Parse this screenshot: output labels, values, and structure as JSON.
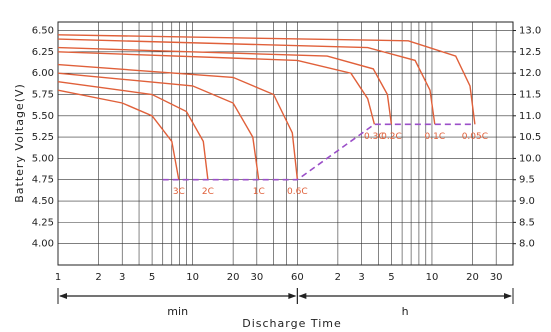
{
  "chart_data": {
    "type": "line",
    "y_label": "Battery Voltage(V)",
    "x_label": "Discharge Time",
    "xscale": "log",
    "grid": true,
    "xlim": [
      1,
      2400
    ],
    "ylim": [
      3.75,
      6.6
    ],
    "y2lim": [
      7.5,
      13.2
    ],
    "xticks": [
      1,
      2,
      3,
      5,
      10,
      20,
      30,
      60,
      {
        "value": 120,
        "label": "2"
      },
      {
        "value": 180,
        "label": "3"
      },
      {
        "value": 300,
        "label": "5"
      },
      {
        "value": 600,
        "label": "10"
      },
      {
        "value": 1200,
        "label": "20"
      },
      {
        "value": 1800,
        "label": "30"
      }
    ],
    "xminor": [
      4,
      6,
      7,
      8,
      9,
      40,
      50,
      240,
      360,
      420,
      480,
      540
    ],
    "yticks": [
      {
        "value": 6.5,
        "label": "6.50"
      },
      6.25,
      {
        "value": 6,
        "label": "6.00"
      },
      5.75,
      {
        "value": 5.5,
        "label": "5.50"
      },
      5.25,
      {
        "value": 5,
        "label": "5.00"
      },
      4.75,
      {
        "value": 4.5,
        "label": "4.50"
      },
      4.25,
      {
        "value": 4,
        "label": "4.00"
      }
    ],
    "y2ticks": [
      {
        "value": 13,
        "label": "13.0"
      },
      12.5,
      {
        "value": 12,
        "label": "12.0"
      },
      11.5,
      {
        "value": 11,
        "label": "11.0"
      },
      10.5,
      {
        "value": 10,
        "label": "10.0"
      },
      9.5,
      {
        "value": 9,
        "label": "9.0"
      },
      8.5,
      {
        "value": 8,
        "label": "8.0"
      }
    ],
    "time_ranges": [
      {
        "label": "min",
        "from": 1,
        "to": 60
      },
      {
        "label": "h",
        "from": 60,
        "to": 2400
      }
    ],
    "cutoff": {
      "color": "#9b4fc8",
      "x": [
        6,
        60,
        224,
        1250
      ],
      "values": [
        4.75,
        4.75,
        5.4,
        5.4
      ]
    },
    "series": [
      {
        "name": "3C",
        "color": "#e0603a",
        "x": [
          1,
          3,
          5,
          7,
          7.9
        ],
        "values": [
          5.8,
          5.65,
          5.5,
          5.2,
          4.75
        ]
      },
      {
        "name": "2C",
        "color": "#e0603a",
        "x": [
          1,
          5,
          9,
          12,
          13
        ],
        "values": [
          5.9,
          5.75,
          5.55,
          5.2,
          4.75
        ]
      },
      {
        "name": "1C",
        "color": "#e0603a",
        "x": [
          1,
          10,
          20,
          28,
          31
        ],
        "values": [
          6.0,
          5.85,
          5.65,
          5.25,
          4.75
        ]
      },
      {
        "name": "0.6C",
        "color": "#e0603a",
        "x": [
          1,
          20,
          40,
          55,
          60
        ],
        "values": [
          6.1,
          5.95,
          5.75,
          5.3,
          4.75
        ]
      },
      {
        "name": "0.3C",
        "color": "#e0603a",
        "x": [
          1,
          60,
          150,
          200,
          224
        ],
        "values": [
          6.25,
          6.15,
          6.0,
          5.7,
          5.4
        ]
      },
      {
        "name": "0.2C",
        "color": "#e0603a",
        "x": [
          1,
          100,
          220,
          280,
          300
        ],
        "values": [
          6.3,
          6.2,
          6.05,
          5.75,
          5.4
        ]
      },
      {
        "name": "0.1C",
        "color": "#e0603a",
        "x": [
          1,
          200,
          450,
          580,
          630
        ],
        "values": [
          6.4,
          6.3,
          6.15,
          5.8,
          5.4
        ]
      },
      {
        "name": "0.05C",
        "color": "#e0603a",
        "x": [
          1,
          400,
          900,
          1150,
          1250
        ],
        "values": [
          6.45,
          6.38,
          6.2,
          5.85,
          5.4
        ]
      }
    ]
  }
}
